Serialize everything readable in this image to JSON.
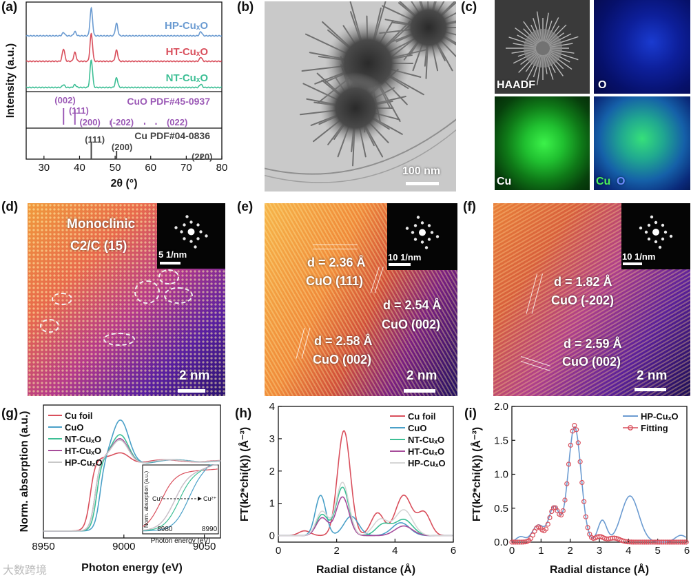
{
  "panels": {
    "a": "(a)",
    "b": "(b)",
    "c": "(c)",
    "d": "(d)",
    "e": "(e)",
    "f": "(f)",
    "g": "(g)",
    "h": "(h)",
    "i": "(i)"
  },
  "panel_b": {
    "scalebar": "100 nm"
  },
  "panel_c": {
    "haadf": "HAADF",
    "o": "O",
    "cu": "Cu",
    "merge_cu": "Cu",
    "merge_o": "O"
  },
  "panel_d": {
    "phase": "Monoclinic",
    "space_group": "C2/C (15)",
    "fft_scale": "5 1/nm",
    "scalebar": "2 nm"
  },
  "panel_e": {
    "fft_scale": "10 1/nm",
    "scalebar": "2 nm",
    "d1": "d = 2.36 Å",
    "p1": "CuO (111)",
    "d2": "d = 2.54 Å",
    "p2": "CuO (002)",
    "d3": "d = 2.58 Å",
    "p3": "CuO (002)"
  },
  "panel_f": {
    "fft_scale": "10 1/nm",
    "scalebar": "2 nm",
    "d1": "d = 1.82 Å",
    "p1": "CuO (-202)",
    "d2": "d = 2.59 Å",
    "p2": "CuO (002)"
  },
  "watermark": "大数跨境",
  "chart_data": [
    {
      "id": "a",
      "type": "line",
      "xlabel": "2θ (°)",
      "ylabel": "Intensity (a.u.)",
      "xlim": [
        25,
        80
      ],
      "xticks": [
        30,
        40,
        50,
        60,
        70,
        80
      ],
      "colors": {
        "HP": "#6b9bd1",
        "HT": "#d94f5c",
        "NT": "#3dbf95",
        "CuO_ref": "#9b59b6",
        "Cu_ref": "#444444"
      },
      "series": [
        {
          "name": "HP-CuxO",
          "label": "HP-CuₓO",
          "peaks": [
            [
              35.5,
              0.12
            ],
            [
              38.7,
              0.15
            ],
            [
              43.3,
              1.0
            ],
            [
              50.4,
              0.45
            ],
            [
              74.1,
              0.15
            ]
          ]
        },
        {
          "name": "HT-CuxO",
          "label": "HT-CuₓO",
          "peaks": [
            [
              35.5,
              0.45
            ],
            [
              38.7,
              0.32
            ],
            [
              43.3,
              1.0
            ],
            [
              50.4,
              0.4
            ],
            [
              74.1,
              0.15
            ]
          ]
        },
        {
          "name": "NT-CuxO",
          "label": "NT-CuₓO",
          "peaks": [
            [
              35.5,
              0.1
            ],
            [
              38.7,
              0.1
            ],
            [
              43.3,
              1.0
            ],
            [
              50.4,
              0.35
            ],
            [
              74.1,
              0.12
            ]
          ]
        }
      ],
      "references": [
        {
          "name": "CuO PDF#45-0937",
          "lines": [
            [
              35.5,
              1.0
            ],
            [
              38.7,
              0.95
            ],
            [
              48.7,
              0.25
            ],
            [
              58.3,
              0.12
            ],
            [
              61.5,
              0.1
            ]
          ],
          "labels": [
            {
              "text": "(002)",
              "x": 33.0,
              "row": 0
            },
            {
              "text": "(111)",
              "x": 37.0,
              "row": 1
            },
            {
              "text": "(200)",
              "x": 40.0,
              "row": 2
            },
            {
              "text": "(-202)",
              "x": 48.5,
              "row": 2
            },
            {
              "text": "(022)",
              "x": 64.5,
              "row": 2
            }
          ]
        },
        {
          "name": "Cu PDF#04-0836",
          "lines": [
            [
              43.3,
              1.0
            ],
            [
              50.4,
              0.5
            ],
            [
              74.1,
              0.3
            ]
          ],
          "labels": [
            {
              "text": "(111)",
              "x": 41.5,
              "row": 0
            },
            {
              "text": "(200)",
              "x": 49.0,
              "row": 1
            },
            {
              "text": "(220)",
              "x": 71.5,
              "row": 2
            }
          ]
        }
      ]
    },
    {
      "id": "g",
      "type": "line",
      "xlabel": "Photon energy (eV)",
      "ylabel": "Norm. absorption (a.u.)",
      "xlim": [
        8950,
        9060
      ],
      "xticks": [
        8950,
        9000,
        9050
      ],
      "series": [
        {
          "name": "Cu foil",
          "color": "#d94f5c",
          "edge": 8979,
          "peak": 1.12,
          "peak_at": 8999
        },
        {
          "name": "CuO",
          "color": "#4aa0c8",
          "edge": 8985,
          "peak": 1.55,
          "peak_at": 8998
        },
        {
          "name": "NT-CuxO",
          "label": "NT-CuₓO",
          "color": "#3dbf95",
          "edge": 8983,
          "peak": 1.35,
          "peak_at": 8998
        },
        {
          "name": "HT-CuxO",
          "label": "HT-CuₓO",
          "color": "#a64c9a",
          "edge": 8982,
          "peak": 1.3,
          "peak_at": 8998
        },
        {
          "name": "HP-CuxO",
          "label": "HP-CuₓO",
          "color": "#c8c8c8",
          "edge": 8982,
          "peak": 1.28,
          "peak_at": 8998
        }
      ],
      "inset": {
        "xlim": [
          8975,
          8992
        ],
        "xticks": [
          8980,
          8990
        ],
        "xlabel": "Photon energy (eV)",
        "ylabel": "Norm. absorption (a.u.)",
        "annot_from": "Cu⁰",
        "annot_to": "Cu²⁺"
      }
    },
    {
      "id": "h",
      "type": "line",
      "xlabel": "Radial distance (Å)",
      "ylabel": "FT(k2*chi(k)) (Å⁻³)",
      "xlim": [
        0,
        6
      ],
      "ylim": [
        -0.2,
        4
      ],
      "xticks": [
        0,
        2,
        4,
        6
      ],
      "yticks": [
        0,
        1,
        2,
        3,
        4
      ],
      "series": [
        {
          "name": "Cu foil",
          "color": "#d94f5c",
          "peaks": [
            [
              0.9,
              0.15,
              0.2
            ],
            [
              2.25,
              3.25,
              0.22
            ],
            [
              3.4,
              0.7,
              0.22
            ],
            [
              4.3,
              1.25,
              0.28
            ],
            [
              5.0,
              0.7,
              0.22
            ]
          ]
        },
        {
          "name": "CuO",
          "color": "#4aa0c8",
          "peaks": [
            [
              1.45,
              1.25,
              0.18
            ],
            [
              2.5,
              0.6,
              0.25
            ],
            [
              4.2,
              0.4,
              0.3
            ]
          ]
        },
        {
          "name": "NT-CuxO",
          "label": "NT-CuₓO",
          "color": "#3dbf95",
          "peaks": [
            [
              1.5,
              0.65,
              0.2
            ],
            [
              2.2,
              1.5,
              0.22
            ],
            [
              3.6,
              0.35,
              0.25
            ],
            [
              4.3,
              0.5,
              0.3
            ]
          ]
        },
        {
          "name": "HT-CuxO",
          "label": "HT-CuₓO",
          "color": "#a64c9a",
          "peaks": [
            [
              1.5,
              0.55,
              0.2
            ],
            [
              2.2,
              1.2,
              0.22
            ],
            [
              4.3,
              0.3,
              0.3
            ]
          ]
        },
        {
          "name": "HP-CuxO",
          "label": "HP-CuₓO",
          "color": "#d6d6d6",
          "peaks": [
            [
              1.5,
              0.75,
              0.2
            ],
            [
              2.2,
              1.65,
              0.22
            ],
            [
              3.5,
              0.5,
              0.25
            ],
            [
              4.3,
              0.8,
              0.3
            ]
          ]
        }
      ]
    },
    {
      "id": "i",
      "type": "line",
      "xlabel": "Radial distance (Å)",
      "ylabel": "FT(k2*chi(k)) (Å⁻³)",
      "xlim": [
        0,
        6
      ],
      "ylim": [
        0,
        2.0
      ],
      "xticks": [
        0,
        1,
        2,
        3,
        4,
        5,
        6
      ],
      "yticks": [
        0.0,
        0.5,
        1.0,
        1.5,
        2.0
      ],
      "series": [
        {
          "name": "HP-CuxO",
          "label": "HP-CuₓO",
          "color": "#6b9bd1",
          "style": "line",
          "peaks": [
            [
              0.3,
              0.08,
              0.15
            ],
            [
              0.9,
              0.25,
              0.2
            ],
            [
              1.45,
              0.52,
              0.18
            ],
            [
              2.15,
              1.7,
              0.22
            ],
            [
              3.1,
              0.32,
              0.15
            ],
            [
              4.05,
              0.68,
              0.3
            ],
            [
              5.8,
              0.1,
              0.2
            ]
          ]
        },
        {
          "name": "Fitting",
          "color": "#d94f5c",
          "style": "markers",
          "peaks": [
            [
              0.9,
              0.22,
              0.15
            ],
            [
              1.45,
              0.5,
              0.18
            ],
            [
              2.15,
              1.72,
              0.22
            ],
            [
              3.0,
              0.08,
              0.15
            ],
            [
              3.5,
              0.06,
              0.2
            ]
          ]
        }
      ]
    }
  ]
}
